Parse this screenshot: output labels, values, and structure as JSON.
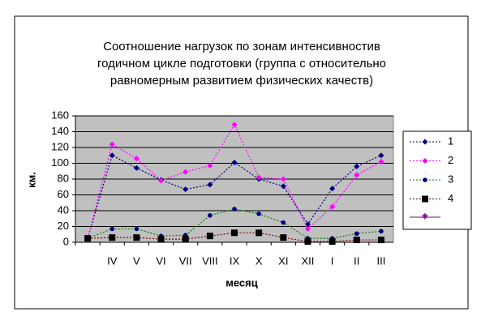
{
  "chart_data": {
    "type": "line",
    "title": [
      "Соотношение нагрузок по зонам интенсивностив",
      "годичном цикле подготовки (группа с относительно",
      "равномерным развитием физических качеств)"
    ],
    "x_label": "месяц",
    "y_label": "км.",
    "categories": [
      null,
      "IV",
      "V",
      "VI",
      "VII",
      "VIII",
      "IX",
      "X",
      "XI",
      "XII",
      "I",
      "II",
      "III"
    ],
    "ylim": [
      0,
      160
    ],
    "yticks": [
      0,
      20,
      40,
      60,
      80,
      100,
      120,
      140,
      160
    ],
    "grid": true,
    "series": [
      {
        "name": "1",
        "color": "#000080",
        "marker": "diamond",
        "marker_color": "#000080",
        "values": [
          5,
          110,
          94,
          79,
          67,
          73,
          101,
          80,
          71,
          23,
          68,
          96,
          110
        ]
      },
      {
        "name": "2",
        "color": "#ff00ff",
        "marker": "diamond",
        "marker_color": "#ff00ff",
        "values": [
          5,
          124,
          106,
          78,
          89,
          97,
          149,
          82,
          80,
          17,
          45,
          85,
          102
        ]
      },
      {
        "name": "3",
        "color": "#008000",
        "marker": "circle",
        "marker_color": "#000080",
        "values": [
          5,
          17,
          17,
          8,
          9,
          34,
          42,
          36,
          25,
          5,
          5,
          11,
          14
        ]
      },
      {
        "name": "4",
        "color": "#800000",
        "marker": "square",
        "marker_color": "#000000",
        "values": [
          5,
          6,
          6,
          4,
          4,
          8,
          12,
          12,
          6,
          1,
          1,
          3,
          3
        ]
      }
    ]
  }
}
